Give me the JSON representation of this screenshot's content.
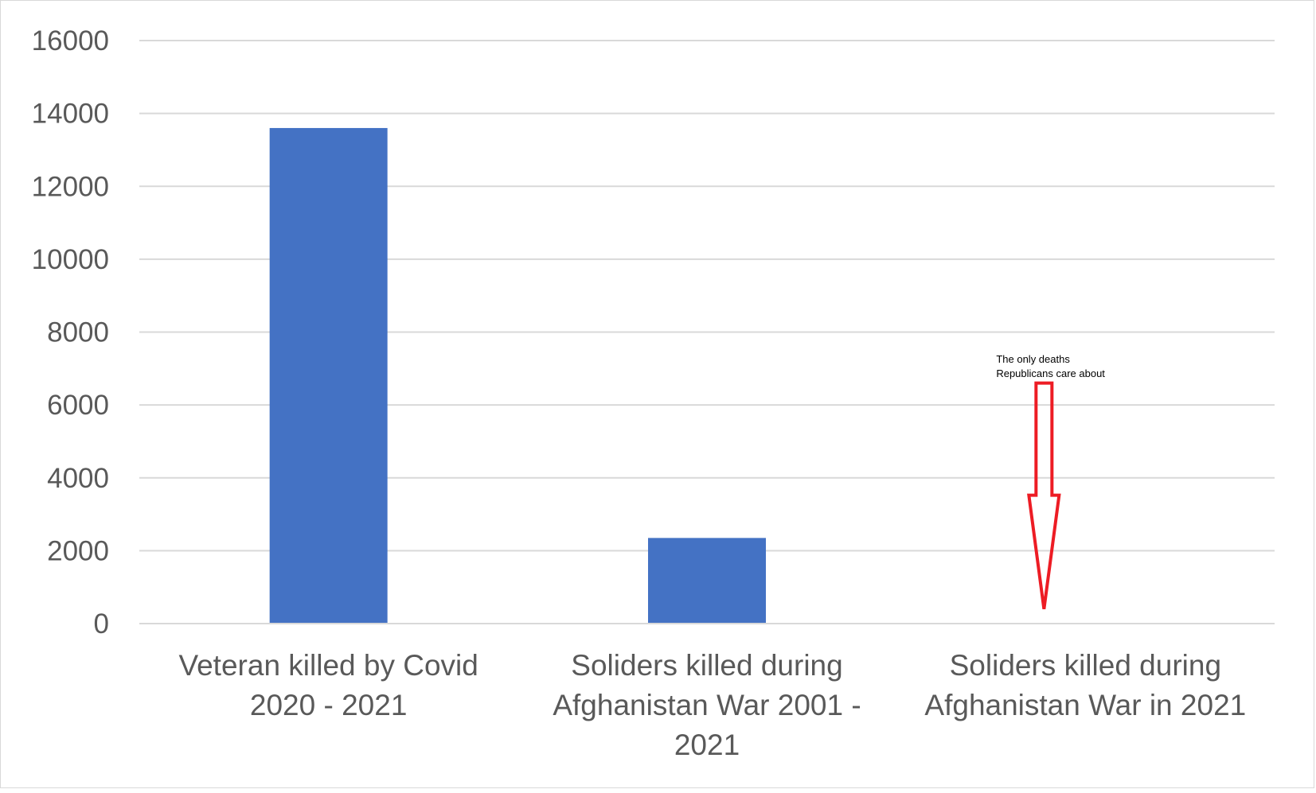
{
  "chart_data": {
    "type": "bar",
    "title": "",
    "xlabel": "",
    "ylabel": "",
    "ylim": [
      0,
      16000
    ],
    "yticks": [
      0,
      2000,
      4000,
      6000,
      8000,
      10000,
      12000,
      14000,
      16000
    ],
    "grid": true,
    "legend": "none",
    "categories": [
      [
        "Veteran killed by Covid",
        "2020 - 2021"
      ],
      [
        "Soliders killed during",
        "Afghanistan War 2001 -",
        "2021"
      ],
      [
        "Soliders killed during",
        "Afghanistan War in 2021"
      ]
    ],
    "values": [
      13600,
      2350,
      13
    ],
    "bar_color": "#4472c4",
    "gridline_color": "#d9d9d9",
    "annotation": {
      "lines": [
        "The only deaths",
        "Republicans care about"
      ],
      "category_index": 2,
      "arrow_color": "#ed1c24",
      "arrow_top_value": 6600,
      "arrow_tip_value": 400
    }
  }
}
